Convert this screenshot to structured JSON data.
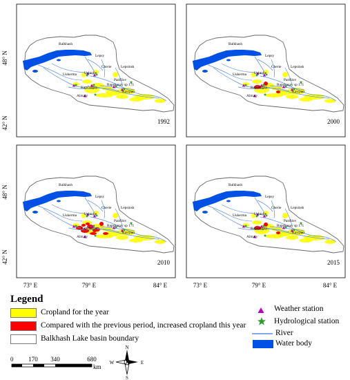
{
  "panels": [
    {
      "year": "1992",
      "change": "none"
    },
    {
      "year": "2000",
      "change": "low"
    },
    {
      "year": "2010",
      "change": "high"
    },
    {
      "year": "2015",
      "change": "low"
    }
  ],
  "axes": {
    "lat_labels": [
      "48° N",
      "42° N"
    ],
    "lon_labels": [
      "73° E",
      "79° E",
      "84° E"
    ]
  },
  "places": {
    "balkhash": "Balkhash",
    "lepsy": "Lepsy",
    "ushtobe": "Ushtobe",
    "cherie": "Cherie",
    "lepsinsk": "Lepsinsk",
    "ukerma": "Uukerma",
    "panfilov": "Panfilov",
    "rapshaqay": "Rapshaqay sp 171",
    "kapchagay": "Kapchagay",
    "kaicpan": "Kaicpan",
    "almaty": "Almaty"
  },
  "legend": {
    "title": "Legend",
    "cropland": "Cropland for the year",
    "increased": "Compared with the previous period, increased cropland  this year",
    "boundary": "Balkhash Lake basin boundary",
    "weather": "Weather station",
    "hydro": "Hydrological station",
    "river": "River",
    "water": "Water body"
  },
  "scalebar": {
    "ticks": [
      "0",
      "170",
      "340",
      "680"
    ],
    "unit": "km"
  },
  "compass": {
    "n": "N",
    "s": "S",
    "e": "E",
    "w": "W"
  },
  "colors": {
    "cropland": "#ffff00",
    "increased": "#ff0000",
    "water": "#0050e6",
    "river": "#5a8ee6",
    "weather": "#c000c0",
    "hydro": "#2aa02a"
  }
}
